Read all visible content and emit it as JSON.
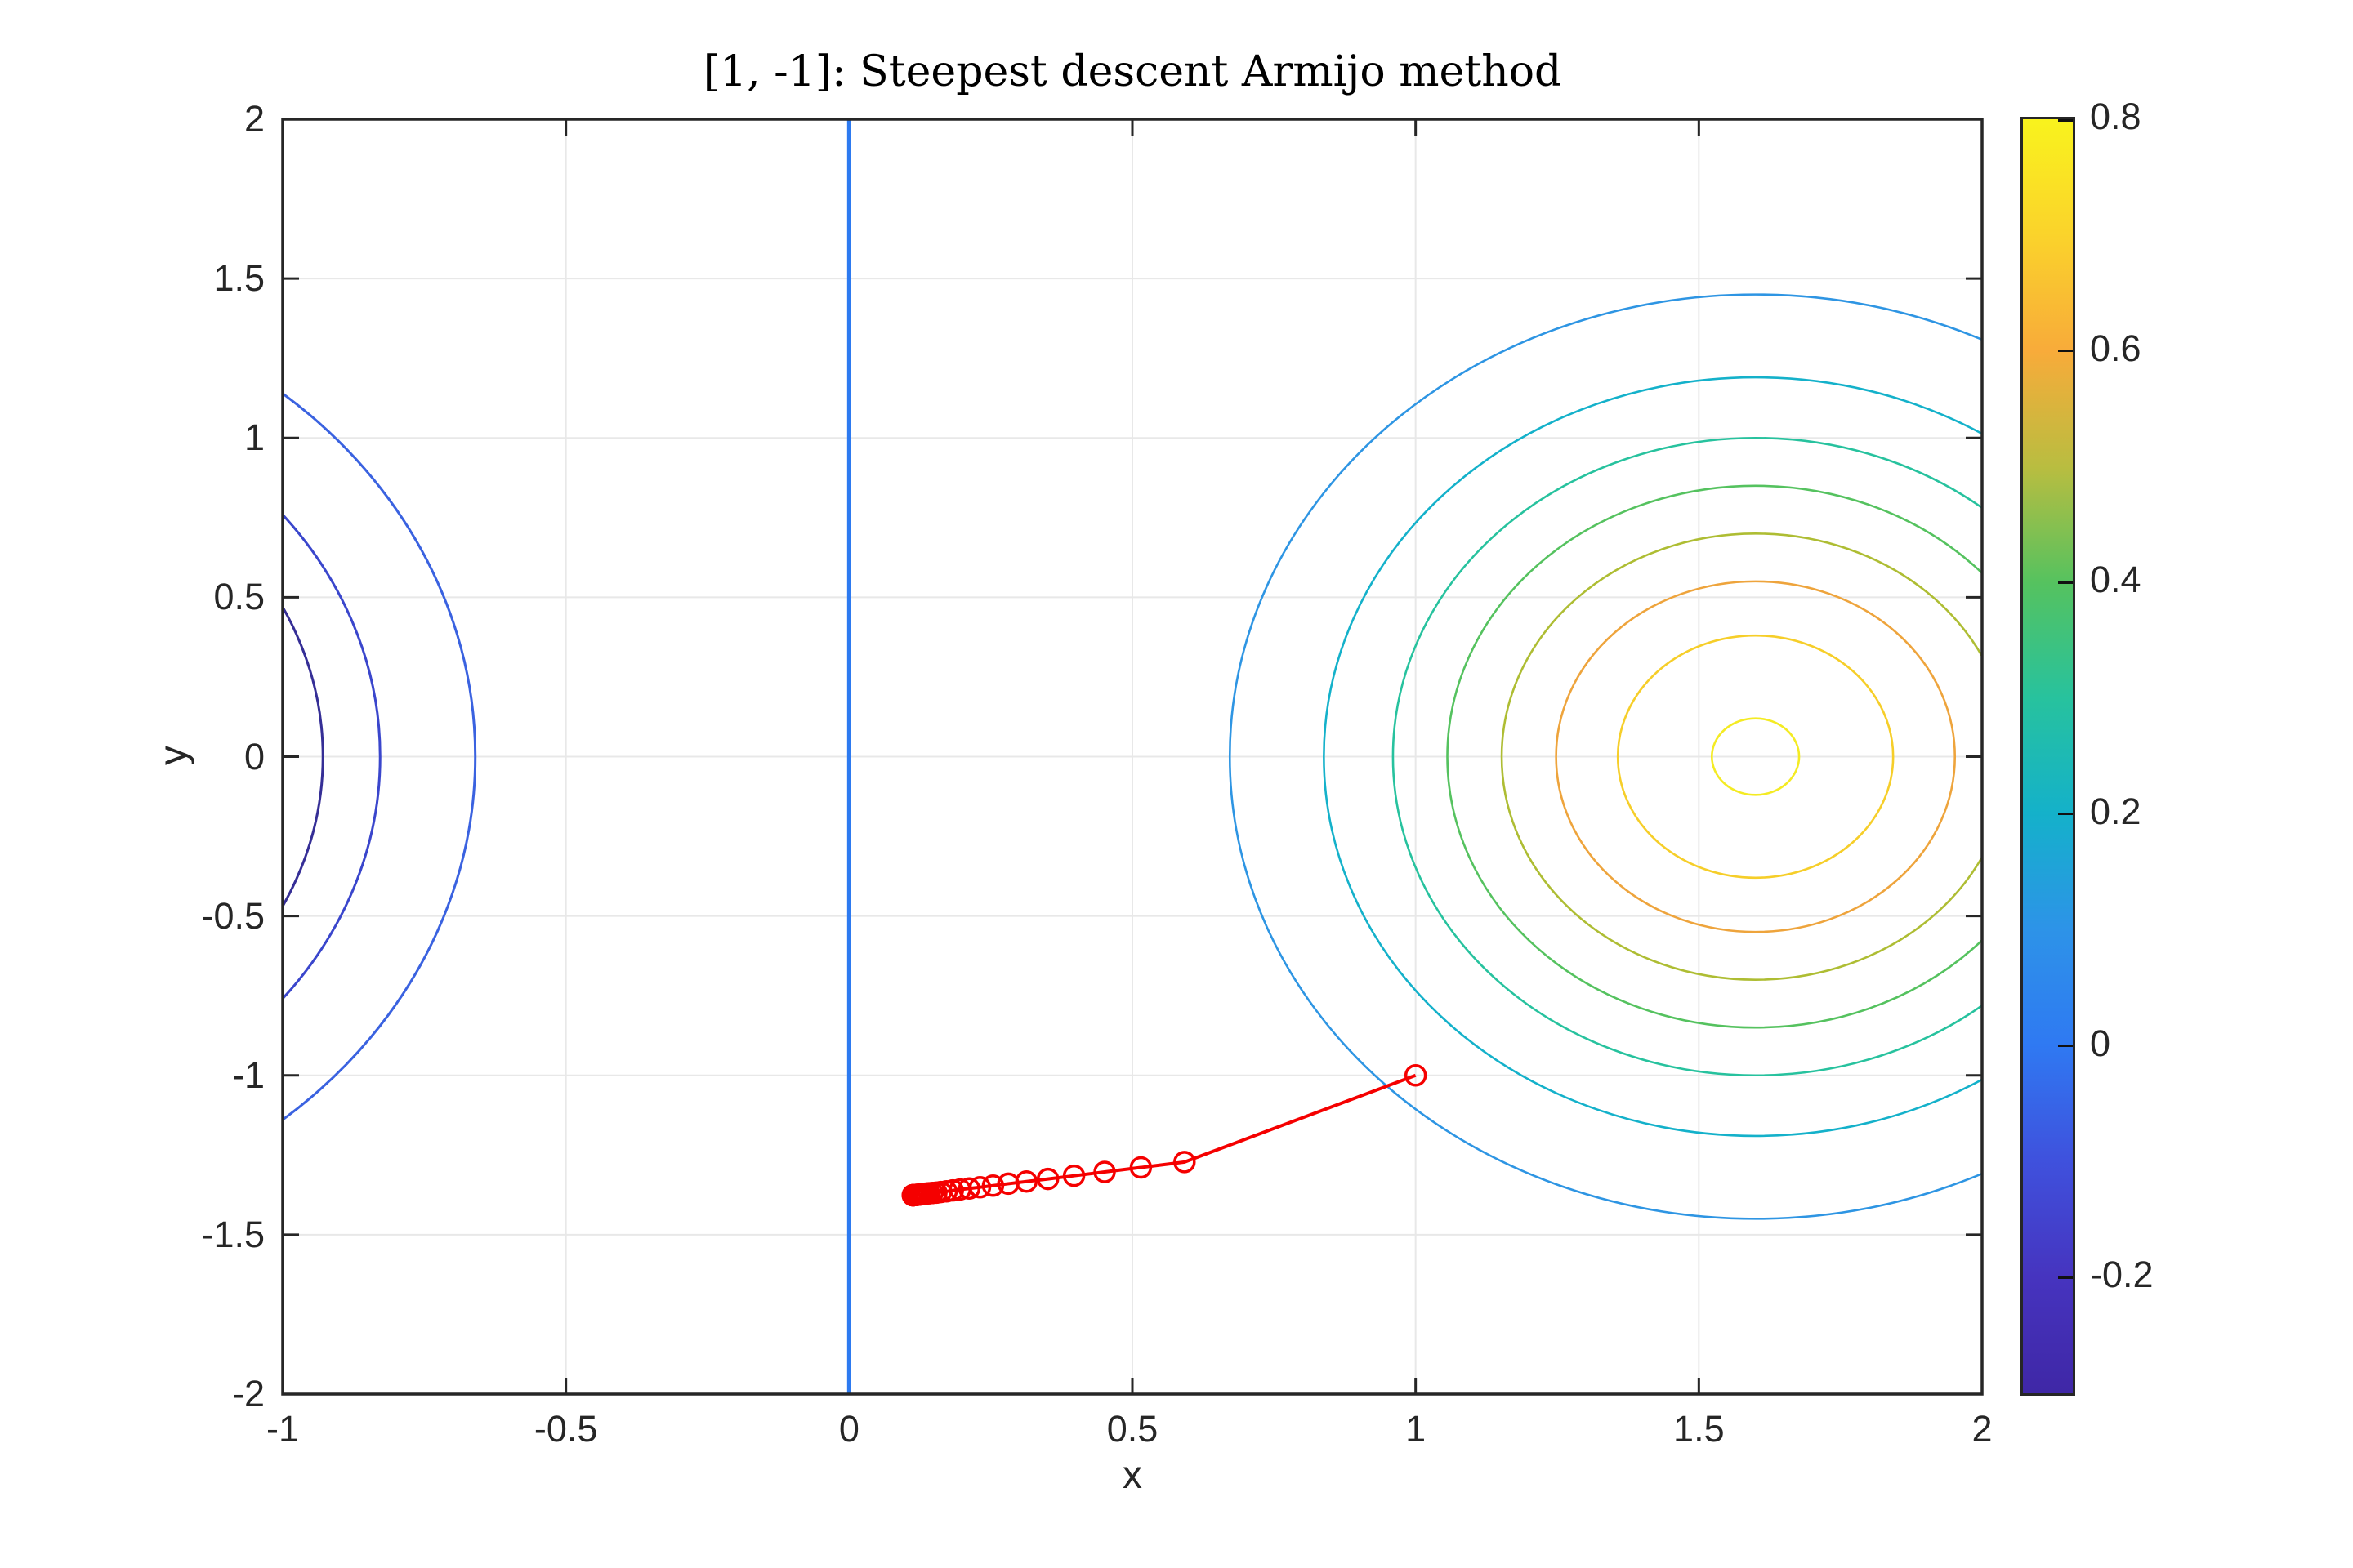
{
  "title": "[1, -1]: Steepest descent Armijo method",
  "axes": {
    "xlabel": "x",
    "ylabel": "y",
    "xlim": [
      -1,
      2
    ],
    "ylim": [
      -2,
      2
    ],
    "x_tick_values": [
      -1,
      -0.5,
      0,
      0.5,
      1,
      1.5,
      2
    ],
    "x_tick_labels": [
      "-1",
      "-0.5",
      "0",
      "0.5",
      "1",
      "1.5",
      "2"
    ],
    "y_tick_values": [
      2,
      1.5,
      1,
      0.5,
      0,
      -0.5,
      -1,
      -1.5,
      -2
    ],
    "y_tick_labels": [
      "2",
      "1.5",
      "1",
      "0.5",
      "0",
      "-0.5",
      "-1",
      "-1.5",
      "-2"
    ],
    "grid": true
  },
  "colorbar": {
    "range": [
      -0.3,
      0.8
    ],
    "tick_values": [
      0.8,
      0.6,
      0.4,
      0.2,
      0,
      -0.2
    ],
    "tick_labels": [
      "0.8",
      "0.6",
      "0.4",
      "0.2",
      "0",
      "-0.2"
    ],
    "gradient_stops": [
      [
        0,
        "#f9f31d"
      ],
      [
        0.091,
        "#fad32b"
      ],
      [
        0.182,
        "#f8ab3a"
      ],
      [
        0.273,
        "#b9bd40"
      ],
      [
        0.364,
        "#55c25f"
      ],
      [
        0.455,
        "#27c29e"
      ],
      [
        0.545,
        "#14b1ca"
      ],
      [
        0.636,
        "#2d93e8"
      ],
      [
        0.727,
        "#2f79f2"
      ],
      [
        0.818,
        "#3f51dd"
      ],
      [
        0.909,
        "#4634bf"
      ],
      [
        1,
        "#3f27a6"
      ]
    ]
  },
  "chart_data": {
    "type": "contour",
    "title": "[1, -1]: Steepest descent Armijo method",
    "xlabel": "x",
    "ylabel": "y",
    "xlim": [
      -1,
      2
    ],
    "ylim": [
      -2,
      2
    ],
    "grid": true,
    "colormap": "parula",
    "colormap_range": [
      -0.3,
      0.8
    ],
    "positive_contours": {
      "center": [
        1.6,
        0
      ],
      "levels": [
        {
          "level": 0.1,
          "rx": 0.928,
          "ry": 1.45,
          "color": "#2e95e3"
        },
        {
          "level": 0.2,
          "rx": 0.762,
          "ry": 1.19,
          "color": "#14b1ca"
        },
        {
          "level": 0.3,
          "rx": 0.64,
          "ry": 1.0,
          "color": "#27c29e"
        },
        {
          "level": 0.4,
          "rx": 0.544,
          "ry": 0.85,
          "color": "#55c25f"
        },
        {
          "level": 0.5,
          "rx": 0.448,
          "ry": 0.7,
          "color": "#aebd33"
        },
        {
          "level": 0.6,
          "rx": 0.352,
          "ry": 0.55,
          "color": "#eea43c"
        },
        {
          "level": 0.7,
          "rx": 0.243,
          "ry": 0.38,
          "color": "#f6ce29"
        },
        {
          "level": 0.8,
          "rx": 0.077,
          "ry": 0.12,
          "color": "#f4eb23"
        }
      ]
    },
    "negative_contours": {
      "center": [
        -1.6,
        0
      ],
      "levels": [
        {
          "level": -0.1,
          "rx": 0.94,
          "ry": 1.48,
          "color": "#3a62e0"
        },
        {
          "level": -0.2,
          "rx": 0.772,
          "ry": 1.206,
          "color": "#3a46cc"
        },
        {
          "level": -0.3,
          "rx": 0.671,
          "ry": 1.048,
          "color": "#352e96"
        }
      ]
    },
    "zero_contour": {
      "x": 0,
      "color": "#2d7af0"
    },
    "descent_path": {
      "color": "#f50000",
      "marker": "circle",
      "start_point": [
        1,
        -1
      ],
      "points": [
        [
          1.0,
          -1.0
        ],
        [
          0.592,
          -1.272
        ],
        [
          0.515,
          -1.289
        ],
        [
          0.451,
          -1.303
        ],
        [
          0.397,
          -1.315
        ],
        [
          0.351,
          -1.325
        ],
        [
          0.313,
          -1.333
        ],
        [
          0.281,
          -1.34
        ],
        [
          0.254,
          -1.346
        ],
        [
          0.231,
          -1.351
        ],
        [
          0.212,
          -1.355
        ],
        [
          0.196,
          -1.358
        ],
        [
          0.183,
          -1.361
        ],
        [
          0.172,
          -1.364
        ],
        [
          0.162,
          -1.366
        ],
        [
          0.154,
          -1.368
        ],
        [
          0.147,
          -1.369
        ],
        [
          0.141,
          -1.37
        ],
        [
          0.136,
          -1.371
        ],
        [
          0.132,
          -1.372
        ],
        [
          0.129,
          -1.373
        ],
        [
          0.126,
          -1.3735
        ],
        [
          0.124,
          -1.374
        ],
        [
          0.122,
          -1.3744
        ],
        [
          0.12,
          -1.3747
        ],
        [
          0.119,
          -1.375
        ],
        [
          0.118,
          -1.375
        ],
        [
          0.117,
          -1.3752
        ],
        [
          0.116,
          -1.3754
        ],
        [
          0.115,
          -1.3756
        ],
        [
          0.1145,
          -1.3757
        ],
        [
          0.114,
          -1.3758
        ],
        [
          0.1137,
          -1.3759
        ],
        [
          0.1134,
          -1.3759
        ],
        [
          0.1131,
          -1.376
        ],
        [
          0.1129,
          -1.376
        ],
        [
          0.1127,
          -1.376
        ],
        [
          0.1126,
          -1.376
        ],
        [
          0.1125,
          -1.376
        ],
        [
          0.1124,
          -1.376
        ]
      ]
    }
  },
  "colors": {
    "axis": "#262626",
    "grid": "#e8e8e8",
    "tick_label": "#262626",
    "title": "#000000",
    "background": "#ffffff"
  }
}
